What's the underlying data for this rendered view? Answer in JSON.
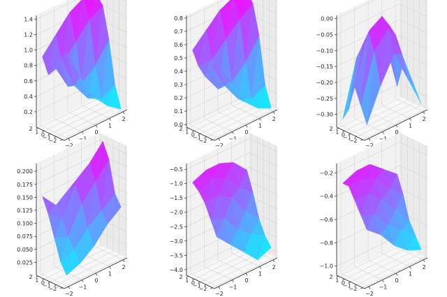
{
  "chart_data": [
    {
      "type": "surface3d",
      "xticks": [
        -2,
        -1,
        0,
        1,
        2
      ],
      "yticks": [
        -2,
        -1,
        0,
        1,
        2
      ],
      "zticks": [
        0.2,
        0.4,
        0.6,
        0.8,
        1.0,
        1.2,
        1.4
      ],
      "zlim": [
        0.0,
        1.45
      ],
      "colormap": [
        "#00ffff",
        "#ff00ff"
      ],
      "grid": true,
      "x": [
        -2,
        -1,
        0,
        1,
        2
      ],
      "y": [
        -2,
        -1,
        0,
        1,
        2
      ],
      "z": [
        [
          1.1,
          0.7,
          0.35,
          0.15,
          0.02
        ],
        [
          1.0,
          0.55,
          0.3,
          0.2,
          0.3
        ],
        [
          0.85,
          0.5,
          0.45,
          0.6,
          0.85
        ],
        [
          0.7,
          0.75,
          0.95,
          1.15,
          1.25
        ],
        [
          0.9,
          1.1,
          1.3,
          1.4,
          1.35
        ]
      ]
    },
    {
      "type": "surface3d",
      "xticks": [
        -2,
        -1,
        0,
        1,
        2
      ],
      "yticks": [
        -2,
        -1,
        0,
        1,
        2
      ],
      "zticks": [
        0.0,
        0.1,
        0.2,
        0.3,
        0.4,
        0.5,
        0.6,
        0.7,
        0.8
      ],
      "zlim": [
        -0.02,
        0.82
      ],
      "colormap": [
        "#00ffff",
        "#ff00ff"
      ],
      "grid": true,
      "x": [
        -2,
        -1,
        0,
        1,
        2
      ],
      "y": [
        -2,
        -1,
        0,
        1,
        2
      ],
      "z": [
        [
          0.55,
          0.35,
          0.15,
          0.05,
          0.0
        ],
        [
          0.5,
          0.3,
          0.15,
          0.1,
          0.15
        ],
        [
          0.4,
          0.25,
          0.25,
          0.35,
          0.5
        ],
        [
          0.45,
          0.45,
          0.55,
          0.65,
          0.72
        ],
        [
          0.55,
          0.65,
          0.75,
          0.8,
          0.78
        ]
      ]
    },
    {
      "type": "surface3d",
      "xticks": [
        -2,
        -1,
        0,
        1,
        2
      ],
      "yticks": [
        -2,
        -1,
        0,
        1,
        2
      ],
      "zticks": [
        -0.3,
        -0.25,
        -0.2,
        -0.15,
        -0.1,
        -0.05,
        0.0
      ],
      "zlim": [
        -0.34,
        0.01
      ],
      "colormap": [
        "#00ffff",
        "#ff00ff"
      ],
      "grid": true,
      "x": [
        -2,
        -1,
        0,
        1,
        2
      ],
      "y": [
        -2,
        -1,
        0,
        1,
        2
      ],
      "z": [
        [
          -0.3,
          -0.2,
          -0.12,
          -0.22,
          -0.32
        ],
        [
          -0.25,
          -0.1,
          -0.05,
          -0.15,
          -0.28
        ],
        [
          -0.2,
          -0.05,
          -0.02,
          -0.1,
          -0.25
        ],
        [
          -0.28,
          -0.1,
          -0.05,
          -0.08,
          -0.22
        ],
        [
          -0.32,
          -0.15,
          -0.08,
          -0.12,
          -0.3
        ]
      ]
    },
    {
      "type": "surface3d",
      "xticks": [
        -2,
        -1,
        0,
        1,
        2
      ],
      "yticks": [
        -2,
        -1,
        0,
        1,
        2
      ],
      "zticks": [
        0.025,
        0.05,
        0.075,
        0.1,
        0.125,
        0.15,
        0.175,
        0.2
      ],
      "zlim": [
        0.0,
        0.215
      ],
      "colormap": [
        "#00ffff",
        "#ff00ff"
      ],
      "grid": true,
      "x": [
        -2,
        -1,
        0,
        1,
        2
      ],
      "y": [
        -2,
        -1,
        0,
        1,
        2
      ],
      "z": [
        [
          0.02,
          0.03,
          0.05,
          0.08,
          0.1
        ],
        [
          0.04,
          0.05,
          0.08,
          0.1,
          0.12
        ],
        [
          0.08,
          0.07,
          0.12,
          0.15,
          0.18
        ],
        [
          0.12,
          0.1,
          0.15,
          0.18,
          0.21
        ],
        [
          0.15,
          0.12,
          0.14,
          0.16,
          0.17
        ]
      ]
    },
    {
      "type": "surface3d",
      "xticks": [
        -2,
        -1,
        0,
        1,
        2
      ],
      "yticks": [
        -2,
        -1,
        0,
        1,
        2
      ],
      "zticks": [
        -4.0,
        -3.5,
        -3.0,
        -2.5,
        -2.0,
        -1.5,
        -1.0,
        -0.5
      ],
      "zlim": [
        -4.2,
        -0.3
      ],
      "colormap": [
        "#00ffff",
        "#ff00ff"
      ],
      "grid": true,
      "x": [
        -2,
        -1,
        0,
        1,
        2
      ],
      "y": [
        -2,
        -1,
        0,
        1,
        2
      ],
      "z": [
        [
          -2.5,
          -3.0,
          -3.5,
          -4.0,
          -3.8
        ],
        [
          -2.0,
          -2.2,
          -2.8,
          -3.2,
          -3.5
        ],
        [
          -1.5,
          -1.5,
          -1.8,
          -2.5,
          -3.0
        ],
        [
          -1.2,
          -1.0,
          -1.2,
          -1.8,
          -2.2
        ],
        [
          -1.0,
          -0.8,
          -0.8,
          -1.0,
          -1.5
        ]
      ]
    },
    {
      "type": "surface3d",
      "xticks": [
        -2,
        -1,
        0,
        1,
        2
      ],
      "yticks": [
        -2,
        -1,
        0,
        1,
        2
      ],
      "zticks": [
        -1.0,
        -0.8,
        -0.6,
        -0.4,
        -0.2
      ],
      "zlim": [
        -1.08,
        -0.12
      ],
      "colormap": [
        "#00ffff",
        "#ff00ff"
      ],
      "grid": true,
      "x": [
        -2,
        -1,
        0,
        1,
        2
      ],
      "y": [
        -2,
        -1,
        0,
        1,
        2
      ],
      "z": [
        [
          -0.6,
          -0.7,
          -0.85,
          -0.95,
          -1.0
        ],
        [
          -0.5,
          -0.55,
          -0.7,
          -0.8,
          -0.9
        ],
        [
          -0.4,
          -0.4,
          -0.5,
          -0.65,
          -0.8
        ],
        [
          -0.3,
          -0.3,
          -0.35,
          -0.5,
          -0.6
        ],
        [
          -0.3,
          -0.25,
          -0.25,
          -0.35,
          -0.45
        ]
      ]
    }
  ]
}
